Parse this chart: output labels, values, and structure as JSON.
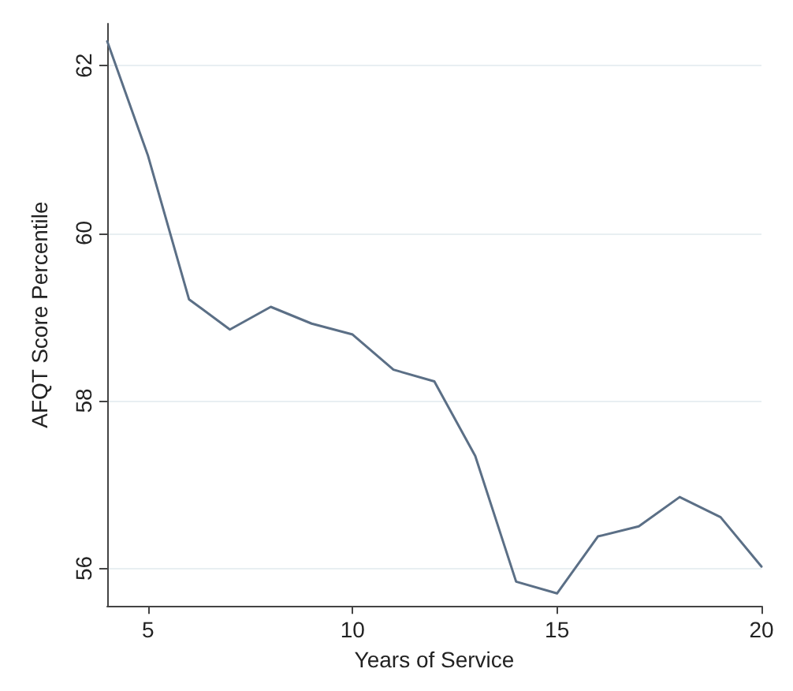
{
  "chart_data": {
    "type": "line",
    "xlabel": "Years of Service",
    "ylabel": "AFQT Score Percentile",
    "x": [
      4,
      5,
      6,
      7,
      8,
      9,
      10,
      11,
      12,
      13,
      14,
      15,
      16,
      17,
      18,
      19,
      20
    ],
    "series": [
      {
        "color": "#5b6f86",
        "values": [
          62.29,
          60.92,
          59.21,
          58.85,
          59.12,
          58.92,
          58.79,
          58.37,
          58.23,
          57.34,
          55.84,
          55.7,
          56.38,
          56.5,
          56.85,
          56.61,
          56.02
        ]
      }
    ],
    "xlim": [
      4,
      20
    ],
    "xticks": [
      5,
      10,
      15,
      20
    ],
    "ylim": [
      55.55,
      62.5
    ],
    "yticks": [
      56,
      58,
      60,
      62
    ],
    "grid": "y",
    "marker": "none",
    "line_style": "solid"
  }
}
